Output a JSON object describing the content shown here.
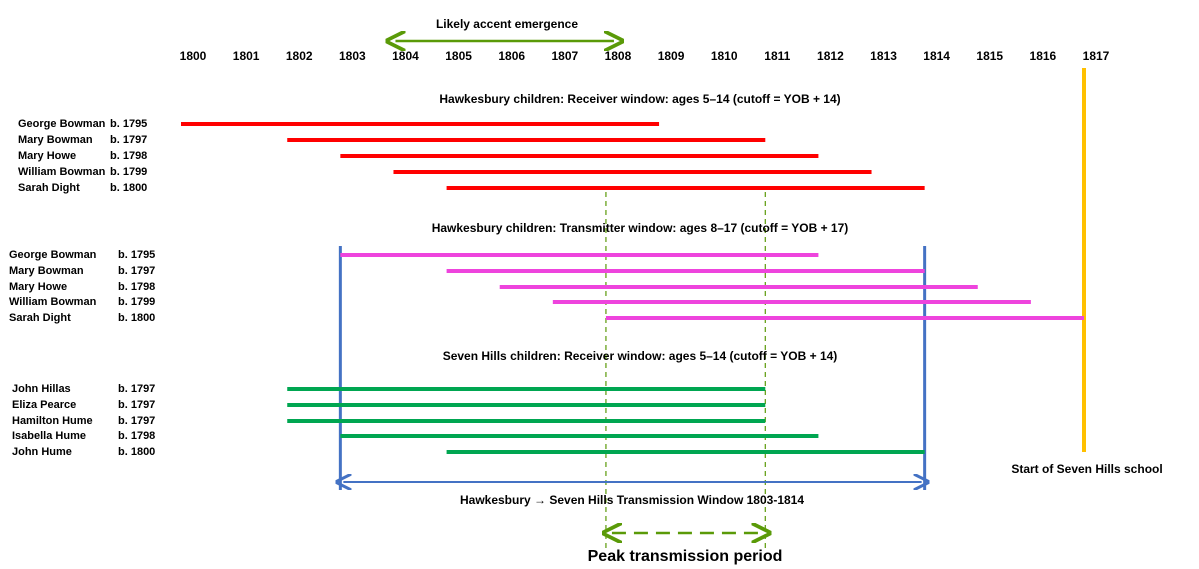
{
  "chart_data": {
    "type": "timeline",
    "xlim": [
      1800,
      1817
    ],
    "xticks": [
      1800,
      1801,
      1802,
      1803,
      1804,
      1805,
      1806,
      1807,
      1808,
      1809,
      1810,
      1811,
      1812,
      1813,
      1814,
      1815,
      1816,
      1817
    ],
    "groups": [
      {
        "title": "Hawkesbury  children: Receiver window: ages 5–14 (cutoff = YOB + 14)",
        "color": "#ff0000",
        "rows": [
          {
            "name": "George Bowman",
            "born": "b. 1795",
            "start": 1800,
            "end": 1809
          },
          {
            "name": "Mary Bowman",
            "born": "b. 1797",
            "start": 1802,
            "end": 1811
          },
          {
            "name": "Mary Howe",
            "born": "b. 1798",
            "start": 1803,
            "end": 1812
          },
          {
            "name": "William Bowman",
            "born": "b. 1799",
            "start": 1804,
            "end": 1813
          },
          {
            "name": "Sarah Dight",
            "born": "b. 1800",
            "start": 1805,
            "end": 1814
          }
        ]
      },
      {
        "title": "Hawkesbury  children: Transmitter window: ages 8–17 (cutoff = YOB + 17)",
        "color": "#ee44dd",
        "rows": [
          {
            "name": "George Bowman",
            "born": "b. 1795",
            "start": 1803,
            "end": 1812
          },
          {
            "name": "Mary Bowman",
            "born": "b. 1797",
            "start": 1805,
            "end": 1814
          },
          {
            "name": "Mary Howe",
            "born": "b. 1798",
            "start": 1806,
            "end": 1815
          },
          {
            "name": "William Bowman",
            "born": "b. 1799",
            "start": 1807,
            "end": 1816
          },
          {
            "name": "Sarah Dight",
            "born": "b. 1800",
            "start": 1808,
            "end": 1817
          }
        ]
      },
      {
        "title": "Seven Hills children: Receiver window: ages 5–14 (cutoff = YOB + 14)",
        "color": "#00a651",
        "rows": [
          {
            "name": "John Hillas",
            "born": "b. 1797",
            "start": 1802,
            "end": 1811
          },
          {
            "name": "Eliza Pearce",
            "born": "b. 1797",
            "start": 1802,
            "end": 1811
          },
          {
            "name": "Hamilton Hume",
            "born": "b. 1797",
            "start": 1802,
            "end": 1811
          },
          {
            "name": "Isabella Hume",
            "born": "b. 1798",
            "start": 1803,
            "end": 1812
          },
          {
            "name": "John Hume",
            "born": "b. 1800",
            "start": 1805,
            "end": 1814
          }
        ]
      }
    ],
    "annotations": {
      "emergence": {
        "text": "Likely accent emergence",
        "start": 1804,
        "end": 1808,
        "color": "#5a9a08"
      },
      "window": {
        "text": "Hawkesbury → Seven Hills Transmission Window 1803-1814",
        "start": 1803,
        "end": 1814,
        "color": "#4472c4"
      },
      "peak": {
        "text": "Peak transmission period",
        "start": 1808,
        "end": 1811,
        "color": "#5a9a08"
      },
      "school": {
        "text": "Start of Seven Hills school",
        "year": 1817,
        "color": "#ffc000"
      }
    }
  }
}
